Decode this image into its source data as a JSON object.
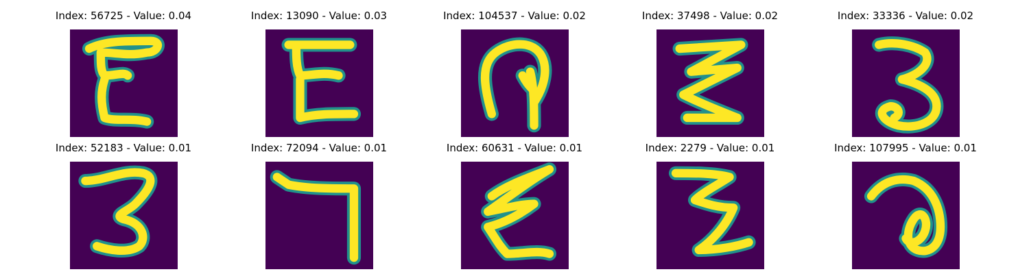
{
  "colors": {
    "background": "#440154",
    "stroke_edge": "#21918c",
    "stroke_core": "#fde725"
  },
  "panels": [
    {
      "title": "Index: 56725 - Value: 0.04",
      "glyph": "E",
      "glyph_icon": "handwritten-E-icon"
    },
    {
      "title": "Index: 13090 - Value: 0.03",
      "glyph": "E",
      "glyph_icon": "handwritten-E-icon"
    },
    {
      "title": "Index: 104537 - Value: 0.02",
      "glyph": "",
      "glyph_icon": "handwritten-loop-glyph-icon"
    },
    {
      "title": "Index: 37498 - Value: 0.02",
      "glyph": "",
      "glyph_icon": "handwritten-zigzag-glyph-icon"
    },
    {
      "title": "Index: 33336 - Value: 0.02",
      "glyph": "3",
      "glyph_icon": "handwritten-3-icon"
    },
    {
      "title": "Index: 52183 - Value: 0.01",
      "glyph": "3",
      "glyph_icon": "handwritten-3-icon"
    },
    {
      "title": "Index: 72094 - Value: 0.01",
      "glyph": "",
      "glyph_icon": "handwritten-hook-glyph-icon"
    },
    {
      "title": "Index: 60631 - Value: 0.01",
      "glyph": "",
      "glyph_icon": "handwritten-zigzag-glyph-icon"
    },
    {
      "title": "Index: 2279 - Value: 0.01",
      "glyph": "3",
      "glyph_icon": "handwritten-3-icon"
    },
    {
      "title": "Index: 107995 - Value: 0.01",
      "glyph": "",
      "glyph_icon": "handwritten-spiral-glyph-icon"
    }
  ]
}
